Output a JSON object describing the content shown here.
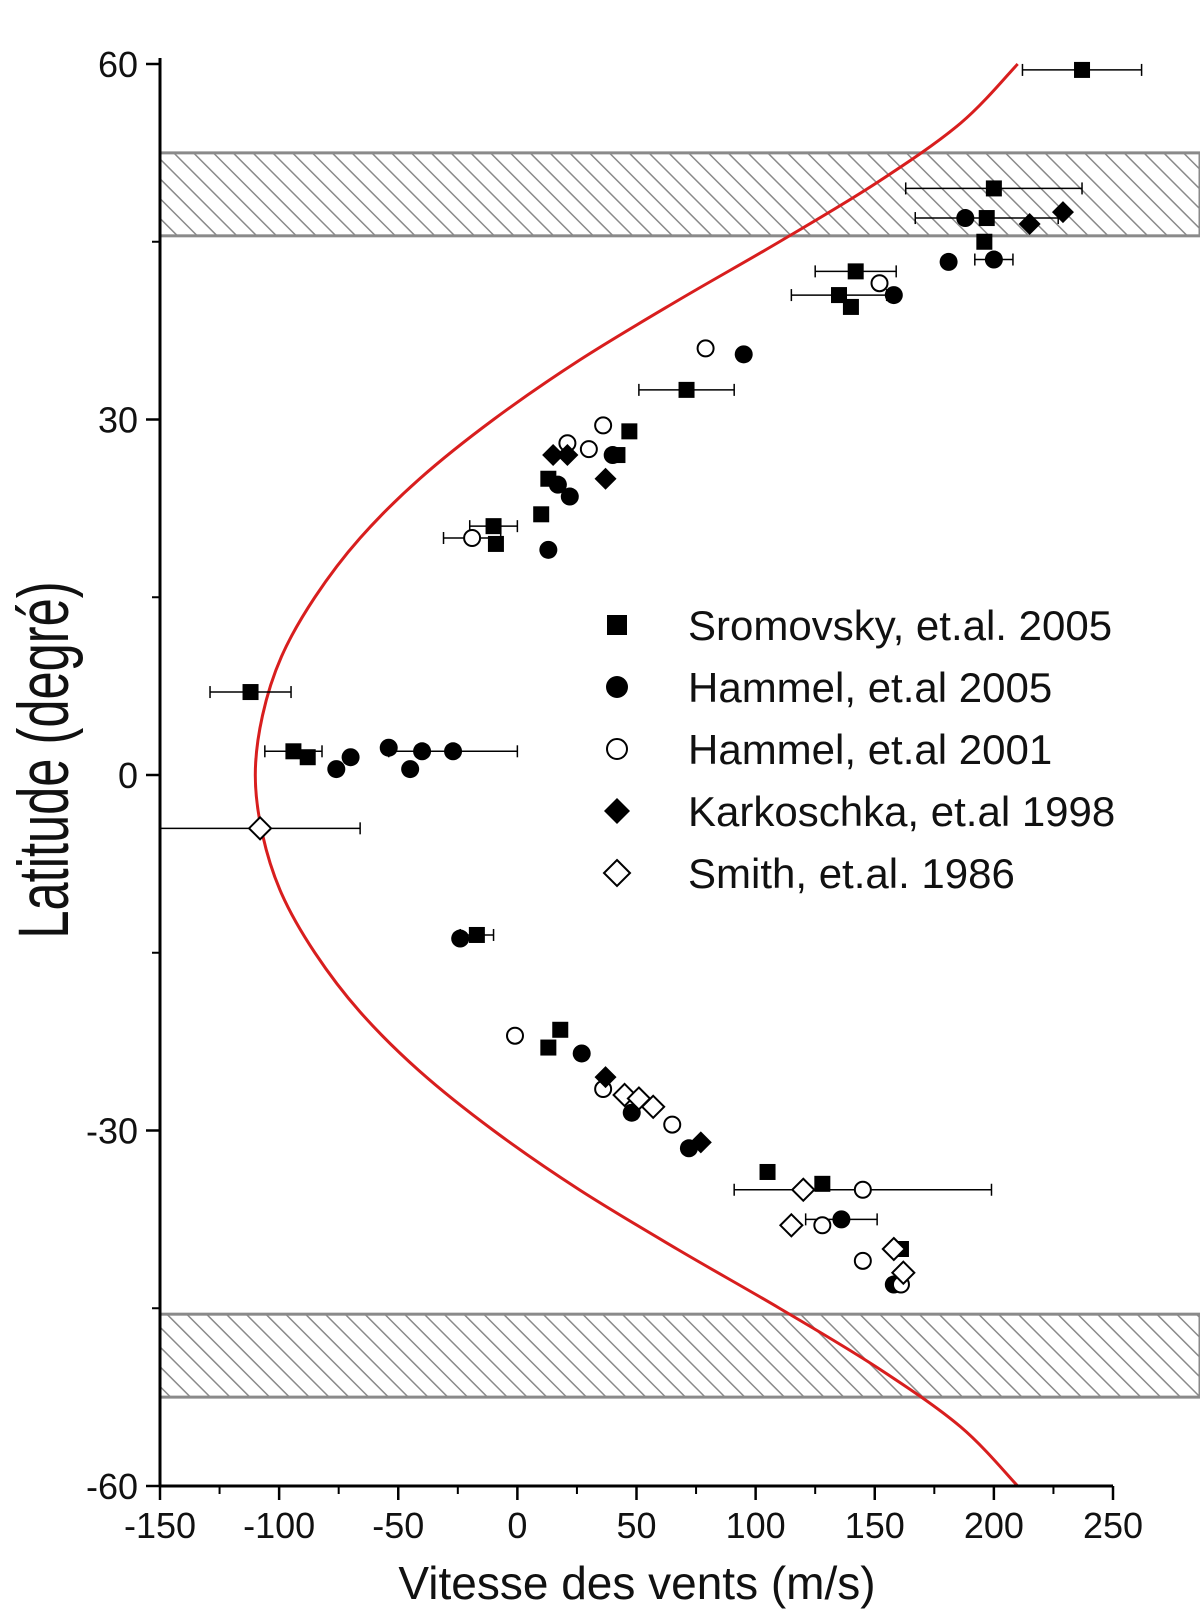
{
  "chart_data": {
    "type": "scatter",
    "xlabel": "Vitesse des vents (m/s)",
    "ylabel": "Latitude (degré)",
    "xlim": [
      -150,
      250
    ],
    "ylim": [
      -60,
      60
    ],
    "xticks": [
      "-150",
      "-100",
      "-50",
      "0",
      "50",
      "100",
      "150",
      "200",
      "250"
    ],
    "yticks": [
      "-60",
      "-30",
      "0",
      "30",
      "60"
    ],
    "legend_position": "right",
    "shaded_bands": [
      {
        "ymin": 45.5,
        "ymax": 52.5
      },
      {
        "ymin": -52.5,
        "ymax": -45.5
      }
    ],
    "fit_curve": {
      "color": "#d81e1e",
      "points": [
        [
          -110,
          0
        ],
        [
          -107,
          5
        ],
        [
          -107,
          -5
        ],
        [
          -99,
          10
        ],
        [
          -99,
          -10
        ],
        [
          -85,
          15
        ],
        [
          -85,
          -15
        ],
        [
          -66,
          20
        ],
        [
          -66,
          -20
        ],
        [
          -41,
          25
        ],
        [
          -41,
          -25
        ],
        [
          -10,
          30
        ],
        [
          -10,
          -30
        ],
        [
          26,
          35
        ],
        [
          26,
          -35
        ],
        [
          67,
          40
        ],
        [
          67,
          -40
        ],
        [
          110,
          45
        ],
        [
          110,
          -45
        ],
        [
          151,
          50
        ],
        [
          151,
          -50
        ],
        [
          186,
          55
        ],
        [
          186,
          -55
        ],
        [
          210,
          60
        ],
        [
          210,
          -60
        ]
      ]
    },
    "series": [
      {
        "name": "Sromovsky, et.al. 2005",
        "marker": "square-filled",
        "points": [
          {
            "x": 237,
            "y": 59.5,
            "xerr": 25
          },
          {
            "x": 200,
            "y": 49.5,
            "xerr": 37
          },
          {
            "x": 197,
            "y": 47,
            "xerr": 30
          },
          {
            "x": 196,
            "y": 45
          },
          {
            "x": 142,
            "y": 42.5,
            "xerr": 17
          },
          {
            "x": 135,
            "y": 40.5,
            "xerr": 20
          },
          {
            "x": 140,
            "y": 39.5
          },
          {
            "x": 71,
            "y": 32.5,
            "xerr": 20
          },
          {
            "x": 47,
            "y": 29
          },
          {
            "x": 42,
            "y": 27
          },
          {
            "x": 13,
            "y": 25
          },
          {
            "x": -10,
            "y": 21,
            "xerr": 10
          },
          {
            "x": 10,
            "y": 22
          },
          {
            "x": -9,
            "y": 19.5
          },
          {
            "x": -112,
            "y": 7,
            "xerr": 17
          },
          {
            "x": -94,
            "y": 2,
            "xerr": 12
          },
          {
            "x": -88,
            "y": 1.5
          },
          {
            "x": -17,
            "y": -13.5,
            "xerr": 7
          },
          {
            "x": 18,
            "y": -21.5
          },
          {
            "x": 13,
            "y": -23
          },
          {
            "x": 105,
            "y": -33.5
          },
          {
            "x": 128,
            "y": -34.5
          },
          {
            "x": 161,
            "y": -40
          }
        ]
      },
      {
        "name": "Hammel, et.al 2005",
        "marker": "circle-filled",
        "points": [
          {
            "x": 188,
            "y": 47
          },
          {
            "x": 200,
            "y": 43.5,
            "xerr": 8
          },
          {
            "x": 181,
            "y": 43.3
          },
          {
            "x": 158,
            "y": 40.5
          },
          {
            "x": 95,
            "y": 35.5
          },
          {
            "x": 40,
            "y": 27
          },
          {
            "x": 17,
            "y": 24.5
          },
          {
            "x": 22,
            "y": 23.5
          },
          {
            "x": 13,
            "y": 19
          },
          {
            "x": -27,
            "y": 2,
            "xerr": 27
          },
          {
            "x": -40,
            "y": 2
          },
          {
            "x": -54,
            "y": 2.3
          },
          {
            "x": -70,
            "y": 1.5
          },
          {
            "x": -76,
            "y": 0.5
          },
          {
            "x": -45,
            "y": 0.5
          },
          {
            "x": -24,
            "y": -13.8
          },
          {
            "x": 27,
            "y": -23.5
          },
          {
            "x": 48,
            "y": -28.5
          },
          {
            "x": 72,
            "y": -31.5
          },
          {
            "x": 136,
            "y": -37.5,
            "xerr": 15
          },
          {
            "x": 158,
            "y": -43
          }
        ]
      },
      {
        "name": "Hammel, et.al 2001",
        "marker": "circle-open",
        "points": [
          {
            "x": 152,
            "y": 41.5
          },
          {
            "x": 79,
            "y": 36
          },
          {
            "x": 36,
            "y": 29.5
          },
          {
            "x": 21,
            "y": 28
          },
          {
            "x": 30,
            "y": 27.5
          },
          {
            "x": -19,
            "y": 20,
            "xerr": 12
          },
          {
            "x": -1,
            "y": -22
          },
          {
            "x": 36,
            "y": -26.5
          },
          {
            "x": 65,
            "y": -29.5
          },
          {
            "x": 145,
            "y": -35,
            "xerr": 54
          },
          {
            "x": 128,
            "y": -38
          },
          {
            "x": 145,
            "y": -41
          },
          {
            "x": 161,
            "y": -43
          }
        ]
      },
      {
        "name": "Karkoschka, et.al 1998",
        "marker": "diamond-filled",
        "points": [
          {
            "x": 229,
            "y": 47.5
          },
          {
            "x": 215,
            "y": 46.5
          },
          {
            "x": 15,
            "y": 27
          },
          {
            "x": 21,
            "y": 27
          },
          {
            "x": 37,
            "y": 25
          },
          {
            "x": 37,
            "y": -25.5
          },
          {
            "x": 77,
            "y": -31
          }
        ]
      },
      {
        "name": "Smith, et.al. 1986",
        "marker": "diamond-open",
        "points": [
          {
            "x": -108,
            "y": -4.5,
            "xerr": 42
          },
          {
            "x": 45,
            "y": -27
          },
          {
            "x": 51,
            "y": -27.3
          },
          {
            "x": 57,
            "y": -28
          },
          {
            "x": 120,
            "y": -35
          },
          {
            "x": 115,
            "y": -38
          },
          {
            "x": 158,
            "y": -40
          },
          {
            "x": 162,
            "y": -42
          }
        ]
      }
    ]
  }
}
